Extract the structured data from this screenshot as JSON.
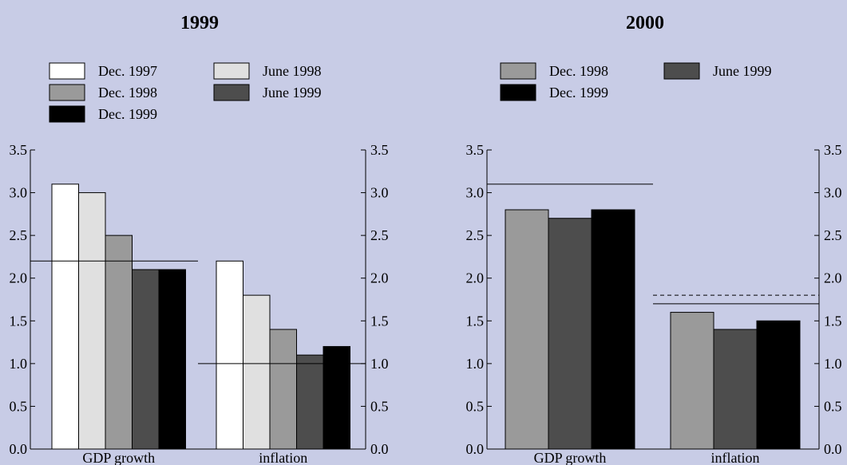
{
  "chart_data": [
    {
      "type": "bar",
      "title": "1999",
      "categories": [
        "GDP growth",
        "inflation"
      ],
      "series": [
        {
          "name": "Dec. 1997",
          "color": "#ffffff",
          "values": [
            3.1,
            2.2
          ]
        },
        {
          "name": "June 1998",
          "color": "#e0e0e0",
          "values": [
            3.0,
            1.8
          ]
        },
        {
          "name": "Dec. 1998",
          "color": "#9a9a9a",
          "values": [
            2.5,
            1.4
          ]
        },
        {
          "name": "June 1999",
          "color": "#4d4d4d",
          "values": [
            2.1,
            1.1
          ]
        },
        {
          "name": "Dec. 1999",
          "color": "#000000",
          "values": [
            2.1,
            1.2
          ]
        }
      ],
      "reference_lines": [
        {
          "category": "GDP growth",
          "value": 2.2,
          "style": "solid"
        },
        {
          "category": "inflation",
          "value": 1.0,
          "style": "solid"
        }
      ],
      "ylim": [
        0,
        3.5
      ],
      "yticks": [
        "0.0",
        "0.5",
        "1.0",
        "1.5",
        "2.0",
        "2.5",
        "3.0",
        "3.5"
      ],
      "legend_placement": "top",
      "grid": false
    },
    {
      "type": "bar",
      "title": "2000",
      "categories": [
        "GDP growth",
        "inflation"
      ],
      "series": [
        {
          "name": "Dec. 1998",
          "color": "#9a9a9a",
          "values": [
            2.8,
            1.6
          ]
        },
        {
          "name": "June 1999",
          "color": "#4d4d4d",
          "values": [
            2.7,
            1.4
          ]
        },
        {
          "name": "Dec. 1999",
          "color": "#000000",
          "values": [
            2.8,
            1.5
          ]
        }
      ],
      "reference_lines": [
        {
          "category": "GDP growth",
          "value": 3.1,
          "style": "solid"
        },
        {
          "category": "inflation",
          "value": 1.7,
          "style": "solid"
        },
        {
          "category": "inflation",
          "value": 1.8,
          "style": "dashed"
        }
      ],
      "ylim": [
        0,
        3.5
      ],
      "yticks": [
        "0.0",
        "0.5",
        "1.0",
        "1.5",
        "2.0",
        "2.5",
        "3.0",
        "3.5"
      ],
      "legend_placement": "top",
      "grid": false
    }
  ],
  "colors": {
    "background": "#c8cce6",
    "axis": "#000000"
  }
}
